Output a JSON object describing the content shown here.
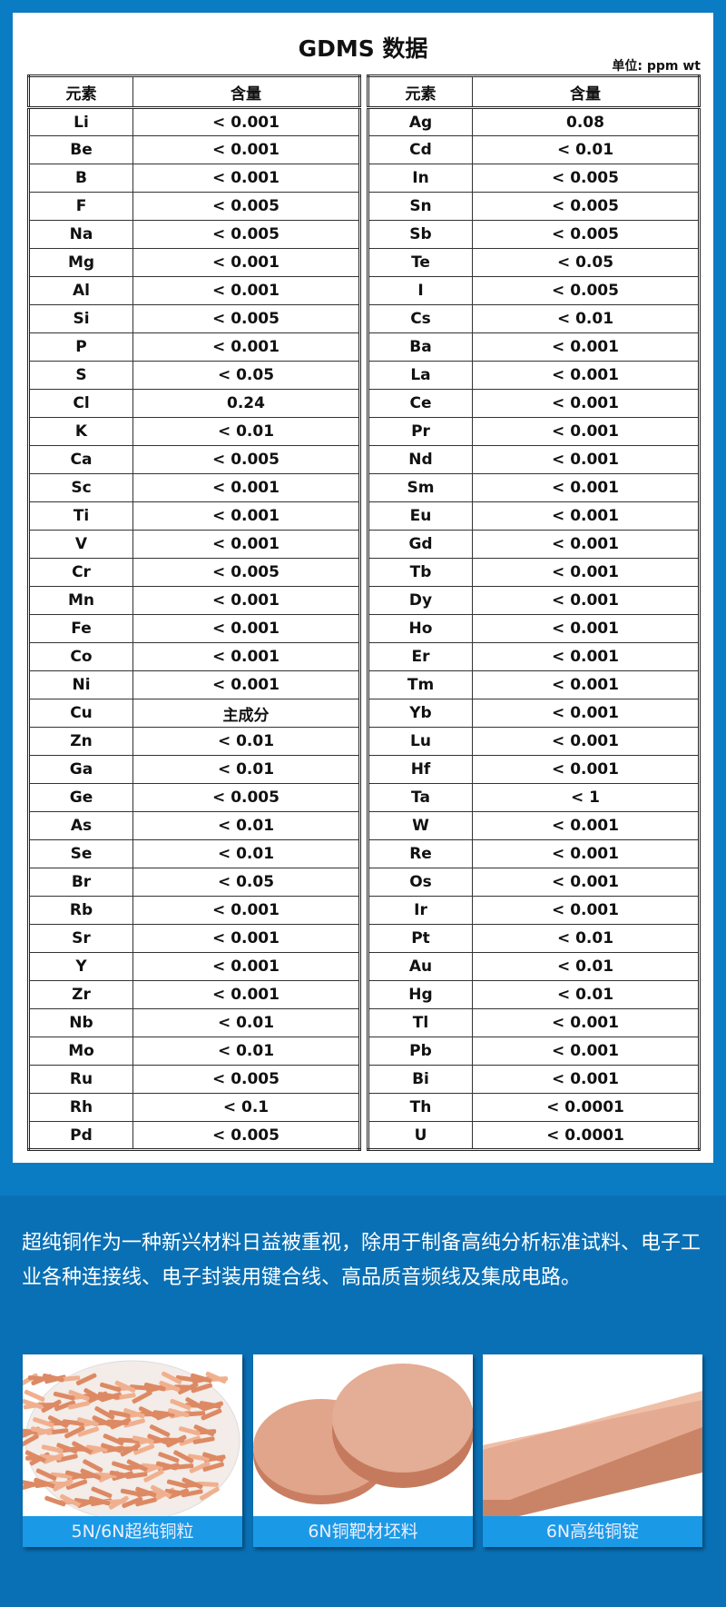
{
  "title": "GDMS 数据",
  "unit": "单位:   ppm wt",
  "headers": {
    "element": "元素",
    "content": "含量"
  },
  "left_rows": [
    [
      "Li",
      "< 0.001"
    ],
    [
      "Be",
      "< 0.001"
    ],
    [
      "B",
      "< 0.001"
    ],
    [
      "F",
      "< 0.005"
    ],
    [
      "Na",
      "< 0.005"
    ],
    [
      "Mg",
      "< 0.001"
    ],
    [
      "Al",
      "< 0.001"
    ],
    [
      "Si",
      "< 0.005"
    ],
    [
      "P",
      "< 0.001"
    ],
    [
      "S",
      "< 0.05"
    ],
    [
      "Cl",
      "0.24"
    ],
    [
      "K",
      "< 0.01"
    ],
    [
      "Ca",
      "< 0.005"
    ],
    [
      "Sc",
      "< 0.001"
    ],
    [
      "Ti",
      "< 0.001"
    ],
    [
      "V",
      "< 0.001"
    ],
    [
      "Cr",
      "< 0.005"
    ],
    [
      "Mn",
      "< 0.001"
    ],
    [
      "Fe",
      "< 0.001"
    ],
    [
      "Co",
      "< 0.001"
    ],
    [
      "Ni",
      "< 0.001"
    ],
    [
      "Cu",
      "主成分"
    ],
    [
      "Zn",
      "< 0.01"
    ],
    [
      "Ga",
      "< 0.01"
    ],
    [
      "Ge",
      "< 0.005"
    ],
    [
      "As",
      "< 0.01"
    ],
    [
      "Se",
      "< 0.01"
    ],
    [
      "Br",
      "< 0.05"
    ],
    [
      "Rb",
      "< 0.001"
    ],
    [
      "Sr",
      "< 0.001"
    ],
    [
      "Y",
      "< 0.001"
    ],
    [
      "Zr",
      "< 0.001"
    ],
    [
      "Nb",
      "< 0.01"
    ],
    [
      "Mo",
      "< 0.01"
    ],
    [
      "Ru",
      "< 0.005"
    ],
    [
      "Rh",
      "< 0.1"
    ],
    [
      "Pd",
      "< 0.005"
    ]
  ],
  "right_rows": [
    [
      "Ag",
      "0.08"
    ],
    [
      "Cd",
      "< 0.01"
    ],
    [
      "In",
      "< 0.005"
    ],
    [
      "Sn",
      "< 0.005"
    ],
    [
      "Sb",
      "< 0.005"
    ],
    [
      "Te",
      "< 0.05"
    ],
    [
      "I",
      "< 0.005"
    ],
    [
      "Cs",
      "< 0.01"
    ],
    [
      "Ba",
      "< 0.001"
    ],
    [
      "La",
      "< 0.001"
    ],
    [
      "Ce",
      "< 0.001"
    ],
    [
      "Pr",
      "< 0.001"
    ],
    [
      "Nd",
      "< 0.001"
    ],
    [
      "Sm",
      "< 0.001"
    ],
    [
      "Eu",
      "< 0.001"
    ],
    [
      "Gd",
      "< 0.001"
    ],
    [
      "Tb",
      "< 0.001"
    ],
    [
      "Dy",
      "< 0.001"
    ],
    [
      "Ho",
      "< 0.001"
    ],
    [
      "Er",
      "< 0.001"
    ],
    [
      "Tm",
      "< 0.001"
    ],
    [
      "Yb",
      "< 0.001"
    ],
    [
      "Lu",
      "< 0.001"
    ],
    [
      "Hf",
      "< 0.001"
    ],
    [
      "Ta",
      "< 1"
    ],
    [
      "W",
      "< 0.001"
    ],
    [
      "Re",
      "< 0.001"
    ],
    [
      "Os",
      "< 0.001"
    ],
    [
      "Ir",
      "< 0.001"
    ],
    [
      "Pt",
      "< 0.01"
    ],
    [
      "Au",
      "< 0.01"
    ],
    [
      "Hg",
      "< 0.01"
    ],
    [
      "Tl",
      "< 0.001"
    ],
    [
      "Pb",
      "< 0.001"
    ],
    [
      "Bi",
      "< 0.001"
    ],
    [
      "Th",
      "< 0.0001"
    ],
    [
      "U",
      "< 0.0001"
    ]
  ],
  "description": "超纯铜作为一种新兴材料日益被重视，除用于制备高纯分析标准试料、电子工业各种连接线、电子封装用键合线、高品质音频线及集成电路。",
  "products": [
    {
      "label": "5N/6N超纯铜粒"
    },
    {
      "label": "6N铜靶材坯料"
    },
    {
      "label": "6N高纯铜锭"
    }
  ],
  "colors": {
    "background": "#0a7cc4",
    "label_bar": "#1a9ae6",
    "copper": "#e2a083"
  }
}
